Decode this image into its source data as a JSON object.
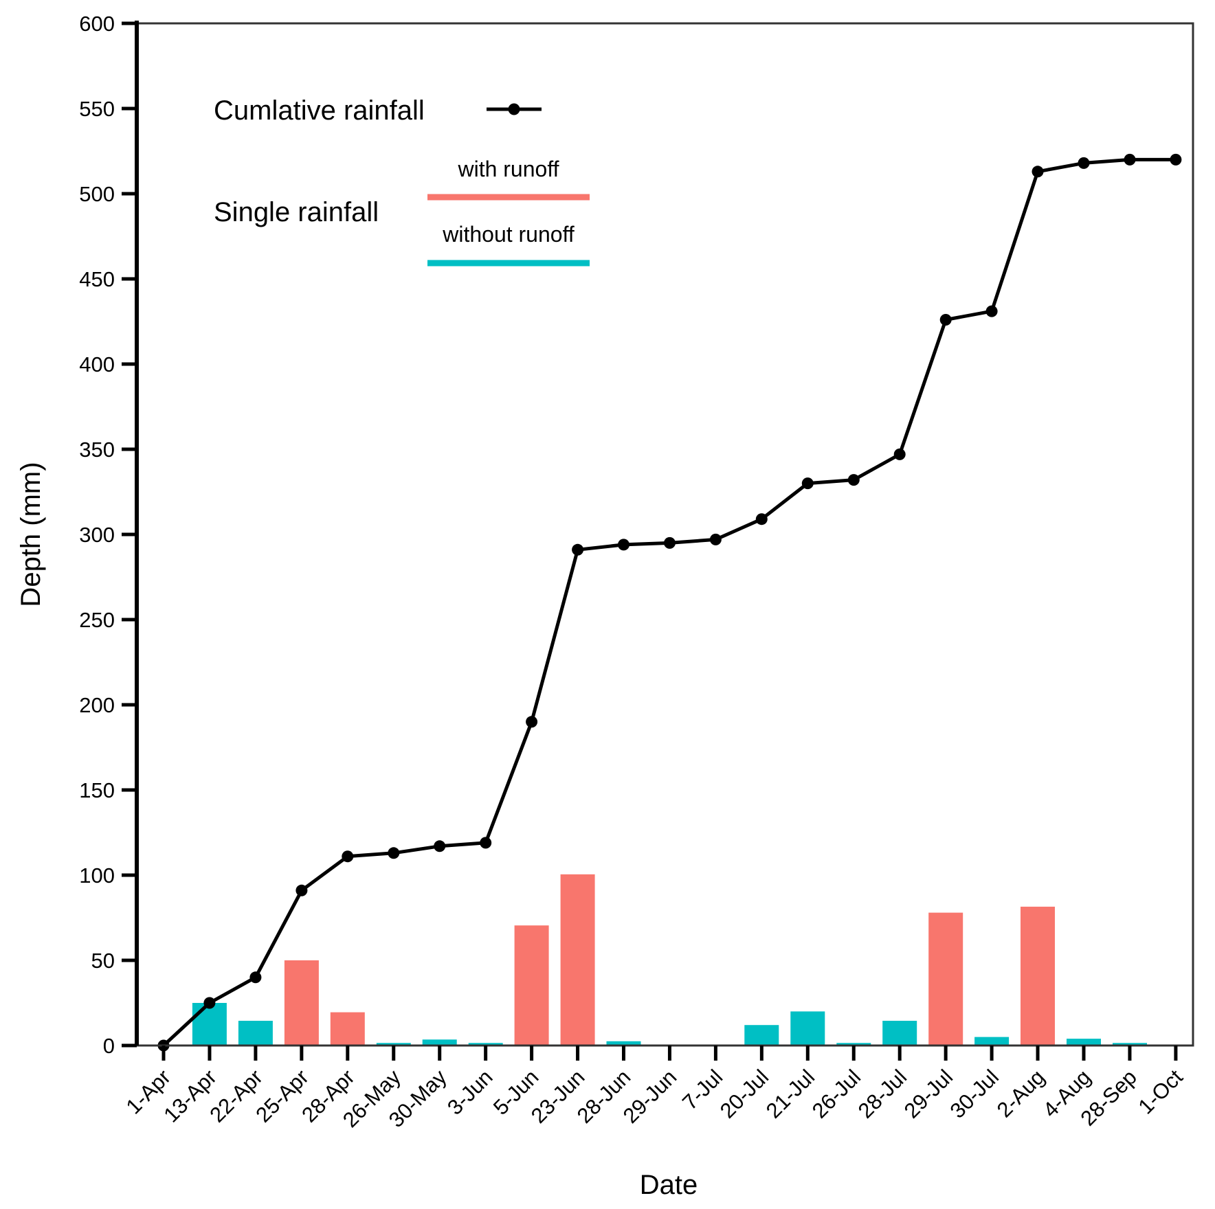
{
  "chart_data": {
    "type": "bar",
    "title": "",
    "xlabel": "Date",
    "ylabel": "Depth (mm)",
    "ylim": [
      0,
      600
    ],
    "yticks": [
      0,
      50,
      100,
      150,
      200,
      250,
      300,
      350,
      400,
      450,
      500,
      550,
      600
    ],
    "grid": false,
    "categories": [
      "1-Apr",
      "13-Apr",
      "22-Apr",
      "25-Apr",
      "28-Apr",
      "26-May",
      "30-May",
      "3-Jun",
      "5-Jun",
      "23-Jun",
      "28-Jun",
      "29-Jun",
      "7-Jul",
      "20-Jul",
      "21-Jul",
      "26-Jul",
      "28-Jul",
      "29-Jul",
      "30-Jul",
      "2-Aug",
      "4-Aug",
      "28-Sep",
      "1-Oct"
    ],
    "series": [
      {
        "name": "Single rainfall",
        "type": "bar",
        "values": [
          0,
          25,
          14.5,
          50,
          19.5,
          1.5,
          3.5,
          1.5,
          70.5,
          100.5,
          2.5,
          0,
          0,
          12,
          20,
          1.5,
          14.5,
          78,
          5,
          81.5,
          4,
          1.5,
          0
        ],
        "runoff": [
          false,
          false,
          false,
          true,
          true,
          false,
          false,
          false,
          true,
          true,
          false,
          false,
          false,
          false,
          false,
          false,
          false,
          true,
          false,
          true,
          false,
          false,
          false
        ]
      },
      {
        "name": "Cumlative rainfall",
        "type": "line",
        "values": [
          0,
          25,
          40,
          91,
          111,
          113,
          117,
          119,
          190,
          291,
          294,
          295,
          297,
          309,
          330,
          332,
          347,
          426,
          431,
          513,
          518,
          520,
          520
        ]
      }
    ],
    "legend": {
      "position": "top-left",
      "cumulative_label": "Cumlative rainfall",
      "single_label": "Single rainfall",
      "with_runoff_label": "with runoff",
      "without_runoff_label": "without runoff"
    },
    "colors": {
      "with_runoff": "#F8766D",
      "without_runoff": "#00BFC4",
      "line": "#000000"
    }
  }
}
